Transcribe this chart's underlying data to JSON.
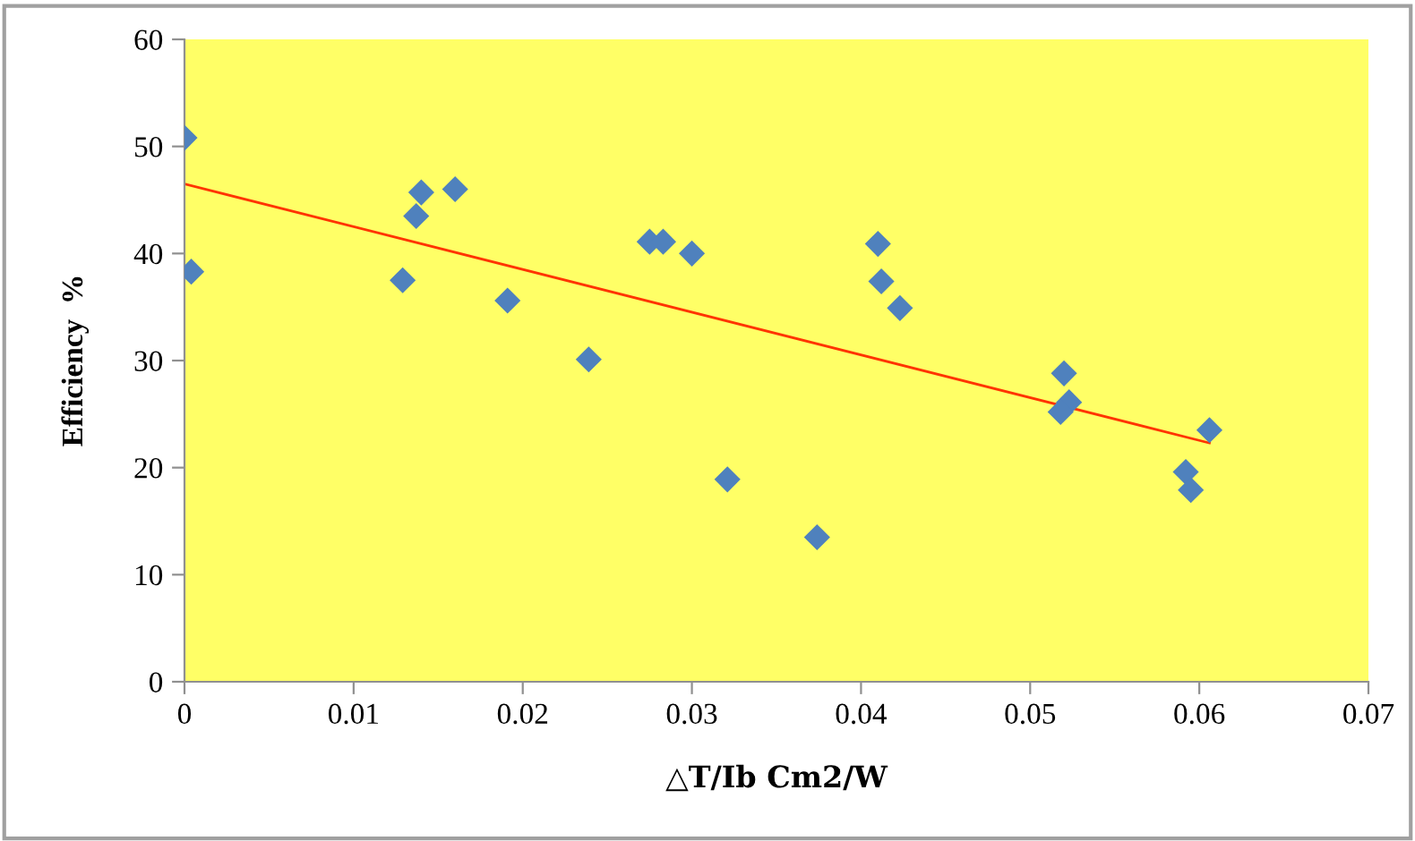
{
  "chart_data": {
    "type": "scatter",
    "xlabel": "△T/Ib Cm2/W",
    "ylabel": "Efficiency  %",
    "xlim": [
      0,
      0.07
    ],
    "xticks": [
      {
        "value": 0,
        "label": "0"
      },
      0.01,
      0.02,
      0.03,
      0.04,
      0.05,
      0.06,
      0.07
    ],
    "ylim": [
      0,
      60
    ],
    "yticks": [
      0,
      10,
      20,
      30,
      40,
      50,
      60
    ],
    "grid": false,
    "legend": false,
    "series": [
      {
        "marker": "diamond",
        "color": "#4f81bd",
        "x": [
          0.0,
          0.0004,
          0.0129,
          0.0137,
          0.014,
          0.016,
          0.0191,
          0.0239,
          0.0275,
          0.0283,
          0.03,
          0.0321,
          0.0374,
          0.041,
          0.0412,
          0.0423,
          0.052,
          0.0523,
          0.0518,
          0.0592,
          0.0595,
          0.0606
        ],
        "values": [
          50.8,
          38.3,
          37.5,
          43.5,
          45.7,
          46.0,
          35.6,
          30.1,
          41.1,
          41.1,
          40.0,
          18.9,
          13.5,
          40.9,
          37.4,
          34.9,
          28.8,
          26.1,
          25.2,
          19.6,
          17.9,
          23.5
        ]
      },
      {
        "type": "line",
        "marker": "none",
        "color": "#ff3300",
        "x": [
          0.0,
          0.0606
        ],
        "values": [
          46.5,
          22.3
        ]
      }
    ]
  }
}
